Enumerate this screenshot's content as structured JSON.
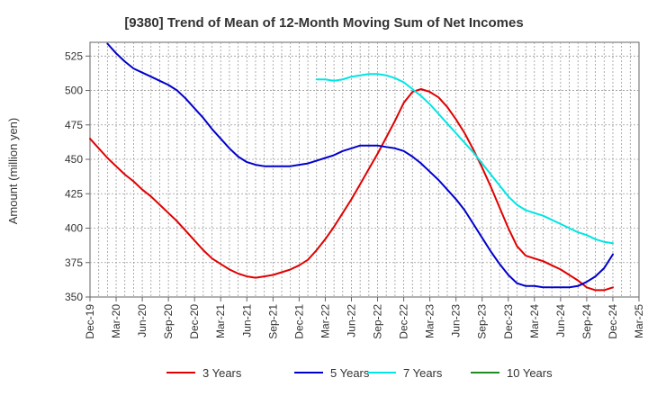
{
  "chart_data": {
    "type": "line",
    "title": "[9380]  Trend of Mean of 12-Month Moving Sum of Net Incomes",
    "xlabel": "",
    "ylabel": "Amount (million yen)",
    "ylim": [
      350,
      535
    ],
    "yticks": [
      350,
      375,
      400,
      425,
      450,
      475,
      500,
      525
    ],
    "xlim": [
      "2019-12",
      "2025-03"
    ],
    "xtick_labels": [
      "Dec-19",
      "Mar-20",
      "Jun-20",
      "Sep-20",
      "Dec-20",
      "Mar-21",
      "Jun-21",
      "Sep-21",
      "Dec-21",
      "Mar-22",
      "Jun-22",
      "Sep-22",
      "Dec-22",
      "Mar-23",
      "Jun-23",
      "Sep-23",
      "Dec-23",
      "Mar-24",
      "Jun-24",
      "Sep-24",
      "Dec-24",
      "Mar-25"
    ],
    "grid": true,
    "legend_position": "bottom",
    "series": [
      {
        "name": "3 Years",
        "color": "#e00000",
        "points": [
          [
            "2019-12",
            465
          ],
          [
            "2020-01",
            458
          ],
          [
            "2020-02",
            451
          ],
          [
            "2020-03",
            445
          ],
          [
            "2020-04",
            439
          ],
          [
            "2020-05",
            434
          ],
          [
            "2020-06",
            428
          ],
          [
            "2020-07",
            423
          ],
          [
            "2020-08",
            417
          ],
          [
            "2020-09",
            411
          ],
          [
            "2020-10",
            405
          ],
          [
            "2020-11",
            398
          ],
          [
            "2020-12",
            391
          ],
          [
            "2021-01",
            384
          ],
          [
            "2021-02",
            378
          ],
          [
            "2021-03",
            374
          ],
          [
            "2021-04",
            370
          ],
          [
            "2021-05",
            367
          ],
          [
            "2021-06",
            365
          ],
          [
            "2021-07",
            364
          ],
          [
            "2021-08",
            365
          ],
          [
            "2021-09",
            366
          ],
          [
            "2021-10",
            368
          ],
          [
            "2021-11",
            370
          ],
          [
            "2021-12",
            373
          ],
          [
            "2022-01",
            377
          ],
          [
            "2022-02",
            384
          ],
          [
            "2022-03",
            392
          ],
          [
            "2022-04",
            401
          ],
          [
            "2022-05",
            411
          ],
          [
            "2022-06",
            421
          ],
          [
            "2022-07",
            432
          ],
          [
            "2022-08",
            443
          ],
          [
            "2022-09",
            454
          ],
          [
            "2022-10",
            466
          ],
          [
            "2022-11",
            478
          ],
          [
            "2022-12",
            491
          ],
          [
            "2023-01",
            499
          ],
          [
            "2023-02",
            501
          ],
          [
            "2023-03",
            499
          ],
          [
            "2023-04",
            495
          ],
          [
            "2023-05",
            488
          ],
          [
            "2023-06",
            479
          ],
          [
            "2023-07",
            469
          ],
          [
            "2023-08",
            457
          ],
          [
            "2023-09",
            444
          ],
          [
            "2023-10",
            430
          ],
          [
            "2023-11",
            415
          ],
          [
            "2023-12",
            400
          ],
          [
            "2024-01",
            387
          ],
          [
            "2024-02",
            380
          ],
          [
            "2024-03",
            378
          ],
          [
            "2024-04",
            376
          ],
          [
            "2024-05",
            373
          ],
          [
            "2024-06",
            370
          ],
          [
            "2024-07",
            366
          ],
          [
            "2024-08",
            362
          ],
          [
            "2024-09",
            357
          ],
          [
            "2024-10",
            355
          ],
          [
            "2024-11",
            355
          ],
          [
            "2024-12",
            357
          ]
        ]
      },
      {
        "name": "5 Years",
        "color": "#0000cc",
        "points": [
          [
            "2020-02",
            534
          ],
          [
            "2020-03",
            527
          ],
          [
            "2020-04",
            521
          ],
          [
            "2020-05",
            516
          ],
          [
            "2020-06",
            513
          ],
          [
            "2020-07",
            510
          ],
          [
            "2020-08",
            507
          ],
          [
            "2020-09",
            504
          ],
          [
            "2020-10",
            500
          ],
          [
            "2020-11",
            494
          ],
          [
            "2020-12",
            487
          ],
          [
            "2021-01",
            480
          ],
          [
            "2021-02",
            472
          ],
          [
            "2021-03",
            465
          ],
          [
            "2021-04",
            458
          ],
          [
            "2021-05",
            452
          ],
          [
            "2021-06",
            448
          ],
          [
            "2021-07",
            446
          ],
          [
            "2021-08",
            445
          ],
          [
            "2021-09",
            445
          ],
          [
            "2021-10",
            445
          ],
          [
            "2021-11",
            445
          ],
          [
            "2021-12",
            446
          ],
          [
            "2022-01",
            447
          ],
          [
            "2022-02",
            449
          ],
          [
            "2022-03",
            451
          ],
          [
            "2022-04",
            453
          ],
          [
            "2022-05",
            456
          ],
          [
            "2022-06",
            458
          ],
          [
            "2022-07",
            460
          ],
          [
            "2022-08",
            460
          ],
          [
            "2022-09",
            460
          ],
          [
            "2022-10",
            459
          ],
          [
            "2022-11",
            458
          ],
          [
            "2022-12",
            456
          ],
          [
            "2023-01",
            452
          ],
          [
            "2023-02",
            447
          ],
          [
            "2023-03",
            441
          ],
          [
            "2023-04",
            435
          ],
          [
            "2023-05",
            428
          ],
          [
            "2023-06",
            421
          ],
          [
            "2023-07",
            413
          ],
          [
            "2023-08",
            403
          ],
          [
            "2023-09",
            393
          ],
          [
            "2023-10",
            383
          ],
          [
            "2023-11",
            374
          ],
          [
            "2023-12",
            366
          ],
          [
            "2024-01",
            360
          ],
          [
            "2024-02",
            358
          ],
          [
            "2024-03",
            358
          ],
          [
            "2024-04",
            357
          ],
          [
            "2024-05",
            357
          ],
          [
            "2024-06",
            357
          ],
          [
            "2024-07",
            357
          ],
          [
            "2024-08",
            358
          ],
          [
            "2024-09",
            361
          ],
          [
            "2024-10",
            365
          ],
          [
            "2024-11",
            371
          ],
          [
            "2024-12",
            381
          ]
        ]
      },
      {
        "name": "7 Years",
        "color": "#00e5e5",
        "points": [
          [
            "2022-02",
            508
          ],
          [
            "2022-03",
            508
          ],
          [
            "2022-04",
            507
          ],
          [
            "2022-05",
            508
          ],
          [
            "2022-06",
            510
          ],
          [
            "2022-07",
            511
          ],
          [
            "2022-08",
            512
          ],
          [
            "2022-09",
            512
          ],
          [
            "2022-10",
            511
          ],
          [
            "2022-11",
            509
          ],
          [
            "2022-12",
            506
          ],
          [
            "2023-01",
            501
          ],
          [
            "2023-02",
            496
          ],
          [
            "2023-03",
            490
          ],
          [
            "2023-04",
            483
          ],
          [
            "2023-05",
            476
          ],
          [
            "2023-06",
            469
          ],
          [
            "2023-07",
            462
          ],
          [
            "2023-08",
            455
          ],
          [
            "2023-09",
            447
          ],
          [
            "2023-10",
            439
          ],
          [
            "2023-11",
            431
          ],
          [
            "2023-12",
            423
          ],
          [
            "2024-01",
            417
          ],
          [
            "2024-02",
            413
          ],
          [
            "2024-03",
            411
          ],
          [
            "2024-04",
            409
          ],
          [
            "2024-05",
            406
          ],
          [
            "2024-06",
            403
          ],
          [
            "2024-07",
            400
          ],
          [
            "2024-08",
            397
          ],
          [
            "2024-09",
            395
          ],
          [
            "2024-10",
            392
          ],
          [
            "2024-11",
            390
          ],
          [
            "2024-12",
            389
          ]
        ]
      },
      {
        "name": "10 Years",
        "color": "#228b22",
        "points": []
      }
    ]
  }
}
